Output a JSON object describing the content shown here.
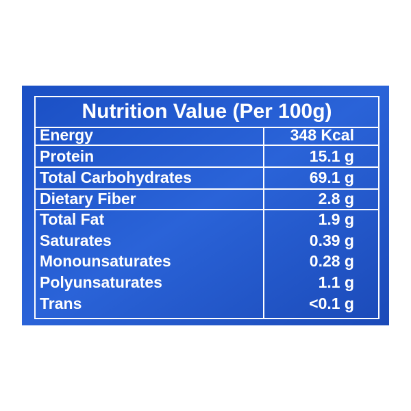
{
  "header": {
    "title": "Nutrition Value (Per 100g)"
  },
  "table": {
    "rows": [
      [
        "Energy",
        "348 Kcal"
      ],
      [
        "Protein",
        "15.1 g"
      ],
      [
        "Total Carbohydrates",
        "69.1 g"
      ],
      [
        "Dietary Fiber",
        "2.8 g"
      ],
      [
        "Total Fat",
        "1.9 g"
      ],
      [
        "Saturates",
        "0.39 g"
      ],
      [
        "Monounsaturates",
        "0.28 g"
      ],
      [
        "Polyunsaturates",
        "1.1 g"
      ],
      [
        "Trans",
        "<0.1 g"
      ]
    ]
  }
}
